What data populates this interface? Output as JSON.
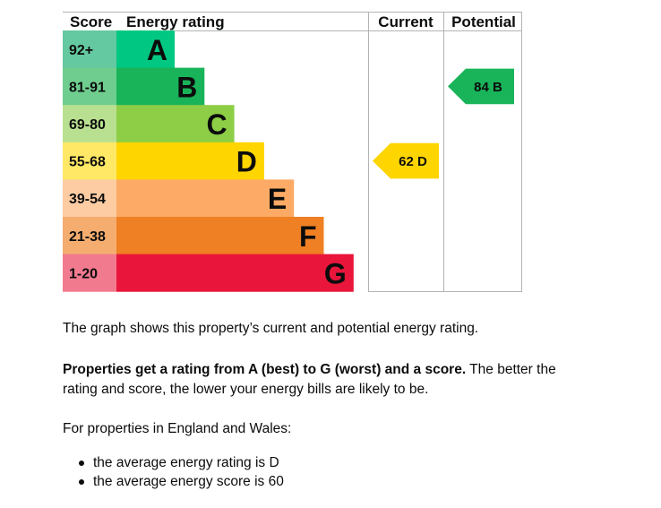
{
  "chart_data": {
    "type": "bar",
    "headers": {
      "score": "Score",
      "rating": "Energy rating",
      "current": "Current",
      "potential": "Potential"
    },
    "bands": [
      {
        "letter": "A",
        "range": "92+",
        "color": "#00c781",
        "score_bg": "#64c8a0"
      },
      {
        "letter": "B",
        "range": "81-91",
        "color": "#19b459",
        "score_bg": "#6fce8f"
      },
      {
        "letter": "C",
        "range": "69-80",
        "color": "#8dce46",
        "score_bg": "#b9e090"
      },
      {
        "letter": "D",
        "range": "55-68",
        "color": "#ffd500",
        "score_bg": "#ffe866"
      },
      {
        "letter": "E",
        "range": "39-54",
        "color": "#fcaa65",
        "score_bg": "#fdcca3"
      },
      {
        "letter": "F",
        "range": "21-38",
        "color": "#ef8023",
        "score_bg": "#f5ad6f"
      },
      {
        "letter": "G",
        "range": "1-20",
        "color": "#e9153b",
        "score_bg": "#f27a8f"
      }
    ],
    "current": {
      "value": 62,
      "band": "D",
      "label": "62 D",
      "color": "#ffd500"
    },
    "potential": {
      "value": 84,
      "band": "B",
      "label": "84 B",
      "color": "#19b459"
    }
  },
  "text": {
    "intro": "The graph shows this property’s current and potential energy rating.",
    "rating_bold": "Properties get a rating from A (best) to G (worst) and a score.",
    "rating_rest": " The better the rating and score, the lower your energy bills are likely to be.",
    "region": "For properties in England and Wales:",
    "bullets": [
      "the average energy rating is D",
      "the average energy score is 60"
    ]
  }
}
